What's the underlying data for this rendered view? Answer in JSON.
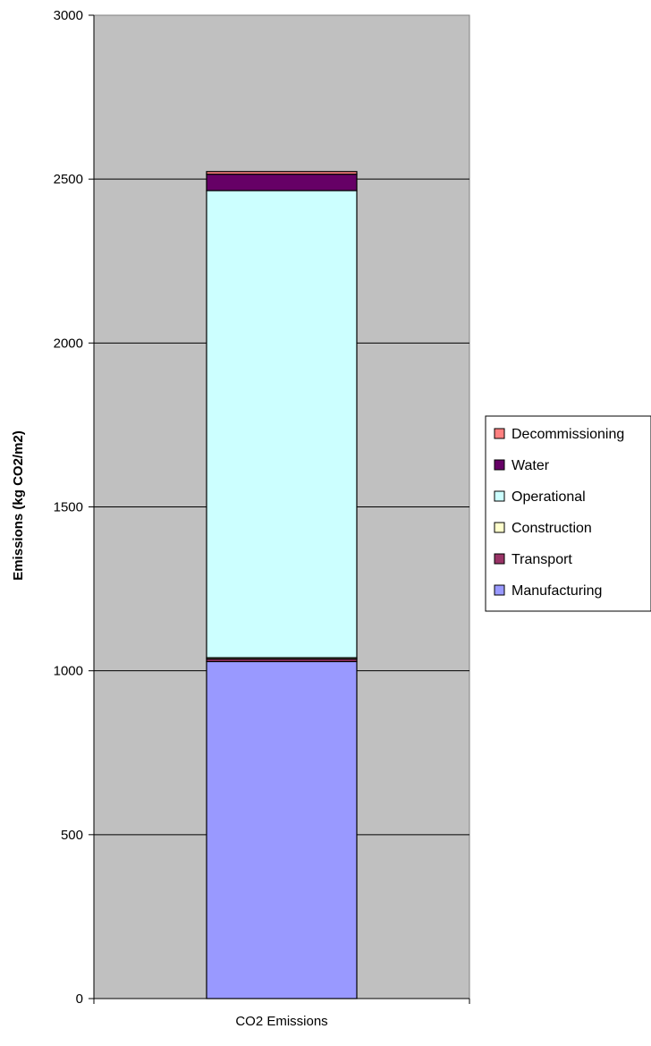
{
  "chart_data": {
    "type": "bar",
    "stacked": true,
    "title": "",
    "xlabel": "",
    "ylabel": "Emissions (kg CO2/m2)",
    "categories": [
      "CO2 Emissions"
    ],
    "ylim": [
      0,
      3000
    ],
    "yticks": [
      0,
      500,
      1000,
      1500,
      2000,
      2500,
      3000
    ],
    "grid": true,
    "legend_position": "right",
    "plot_background": "#c0c0c0",
    "series": [
      {
        "name": "Manufacturing",
        "values": [
          1028
        ],
        "color": "#9999ff"
      },
      {
        "name": "Transport",
        "values": [
          8
        ],
        "color": "#993366"
      },
      {
        "name": "Construction",
        "values": [
          4
        ],
        "color": "#ffffcc"
      },
      {
        "name": "Operational",
        "values": [
          1425
        ],
        "color": "#ccffff"
      },
      {
        "name": "Water",
        "values": [
          50
        ],
        "color": "#660066"
      },
      {
        "name": "Decommissioning",
        "values": [
          8
        ],
        "color": "#ff8080"
      }
    ]
  }
}
